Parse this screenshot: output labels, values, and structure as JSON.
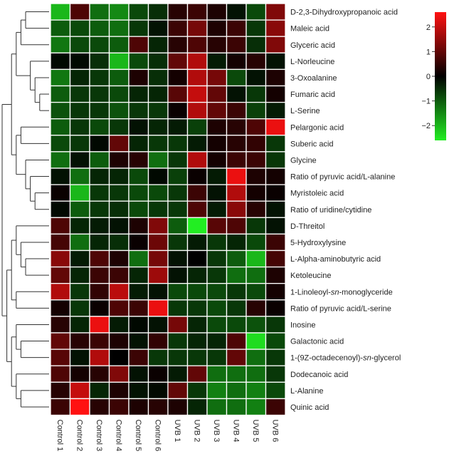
{
  "chart_data": {
    "type": "heatmap",
    "title": "",
    "xlabel": "",
    "ylabel": "",
    "columns": [
      "Control 1",
      "Control 2",
      "Control 3",
      "Control 4",
      "Control 5",
      "Control 6",
      "UVB 1",
      "UVB 2",
      "UVB 3",
      "UVB 4",
      "UVB 5",
      "UVB 6"
    ],
    "rows": [
      "D-2,3-Dihydroxypropanoic acid",
      "Maleic acid",
      "Glyceric acid",
      "L-Norleucine",
      "3-Oxoalanine",
      "Fumaric acid",
      "L-Serine",
      "Pelargonic acid",
      "Suberic acid",
      "Glycine",
      "Ratio of pyruvic acid/L-alanine",
      "Myristoleic acid",
      "Ratio of uridine/cytidine",
      "D-Threitol",
      "5-Hydroxylysine",
      "L-Alpha-aminobutyric acid",
      "Ketoleucine",
      "1-Linoleoyl-sn-monoglyceride",
      "Ratio of pyruvic acid/L-serine",
      "Inosine",
      "Galactonic acid",
      "1-(9Z-octadecenoyl)-sn-glycerol",
      "Dodecanoic acid",
      "L-Alanine",
      "Quinic acid"
    ],
    "row_label_italic_parts": {
      "17": [
        "1-Linoleoyl-",
        "sn",
        "-monoglyceride"
      ],
      "21": [
        "1-(9Z-octadecenoyl)-",
        "sn",
        "-glycerol"
      ]
    },
    "values": [
      [
        -2.0,
        0.8,
        -1.2,
        -1.5,
        -0.8,
        -0.5,
        0.4,
        0.6,
        0.3,
        -0.2,
        -0.8,
        1.3
      ],
      [
        -1.0,
        -0.8,
        -1.0,
        -1.2,
        -0.6,
        -0.2,
        0.6,
        1.2,
        0.3,
        0.6,
        -0.6,
        1.4
      ],
      [
        -1.3,
        -0.8,
        -0.8,
        -1.0,
        0.8,
        -0.4,
        0.4,
        0.8,
        0.4,
        0.6,
        -0.5,
        1.3
      ],
      [
        -0.1,
        -0.1,
        -0.5,
        -2.0,
        -0.8,
        -0.5,
        1.0,
        1.8,
        -0.3,
        0.2,
        0.4,
        -0.2
      ],
      [
        -1.3,
        -0.4,
        -0.6,
        -1.0,
        0.3,
        -0.5,
        0.2,
        1.8,
        1.2,
        -0.8,
        -0.2,
        0.3
      ],
      [
        -1.0,
        -0.6,
        -0.6,
        -0.8,
        -0.4,
        -0.4,
        0.9,
        2.0,
        1.0,
        -0.2,
        -0.6,
        0.2
      ],
      [
        -0.9,
        -0.6,
        -0.6,
        -0.9,
        -0.6,
        -0.6,
        0.1,
        1.8,
        1.0,
        0.6,
        -0.7,
        -0.3
      ],
      [
        -1.0,
        -0.6,
        -0.8,
        -0.6,
        -0.2,
        -0.4,
        -0.3,
        -0.7,
        0.3,
        0.4,
        0.8,
        2.4
      ],
      [
        -0.8,
        -0.6,
        -0.1,
        1.0,
        -0.4,
        -0.6,
        -0.6,
        -0.3,
        0.2,
        0.4,
        0.5,
        -0.6
      ],
      [
        -1.2,
        -0.2,
        -1.0,
        0.3,
        0.4,
        -1.2,
        -0.6,
        1.8,
        0.2,
        0.6,
        0.6,
        -0.6
      ],
      [
        -0.2,
        -1.2,
        -0.4,
        -0.4,
        -0.8,
        -0.1,
        -0.7,
        0.1,
        -0.3,
        2.4,
        0.3,
        0.2
      ],
      [
        0.1,
        -2.0,
        -0.6,
        -0.6,
        -0.8,
        -0.8,
        -0.6,
        0.6,
        -0.2,
        1.8,
        0.2,
        0.1
      ],
      [
        -0.1,
        -1.0,
        -0.6,
        -0.5,
        -0.8,
        -0.6,
        -0.6,
        0.8,
        -0.3,
        1.4,
        0.4,
        -0.2
      ],
      [
        0.8,
        -0.4,
        -0.3,
        -0.2,
        0.3,
        1.3,
        -1.0,
        -2.6,
        0.9,
        0.8,
        -0.6,
        -0.2
      ],
      [
        0.7,
        -1.2,
        -0.4,
        -0.5,
        0.1,
        1.1,
        -0.6,
        -0.3,
        -0.6,
        -0.4,
        -0.8,
        0.6
      ],
      [
        1.4,
        -0.3,
        0.8,
        0.3,
        -1.2,
        1.2,
        -0.2,
        0.0,
        -0.6,
        -1.0,
        -2.0,
        0.7
      ],
      [
        1.0,
        -0.4,
        0.6,
        0.6,
        -0.4,
        1.6,
        -0.2,
        -0.4,
        -0.6,
        -1.2,
        -1.2,
        0.3
      ],
      [
        1.8,
        -0.6,
        0.5,
        1.9,
        -0.3,
        -0.2,
        -0.8,
        -0.8,
        -0.8,
        -0.6,
        -0.8,
        0.2
      ],
      [
        0.2,
        -0.6,
        0.1,
        0.8,
        0.6,
        2.4,
        -0.6,
        -0.6,
        -0.8,
        -0.6,
        0.4,
        0.1
      ],
      [
        0.4,
        -0.4,
        2.4,
        -0.3,
        -0.1,
        -0.2,
        1.2,
        -0.4,
        -0.8,
        -0.8,
        -0.9,
        -0.6
      ],
      [
        1.0,
        0.4,
        0.6,
        0.3,
        -0.2,
        0.5,
        -0.6,
        -0.4,
        -0.4,
        0.8,
        -2.4,
        -0.8
      ],
      [
        0.9,
        -0.2,
        1.8,
        0.0,
        0.6,
        -0.6,
        -0.6,
        -0.6,
        -0.6,
        1.0,
        -1.2,
        -0.6
      ],
      [
        0.8,
        0.2,
        0.4,
        1.3,
        -0.2,
        0.1,
        -0.3,
        1.0,
        -1.2,
        -1.2,
        -1.2,
        -0.6
      ],
      [
        0.4,
        2.0,
        -0.4,
        0.3,
        -0.2,
        -0.1,
        1.0,
        -0.6,
        -1.4,
        -1.2,
        -1.4,
        -0.8
      ],
      [
        0.6,
        2.6,
        0.4,
        0.6,
        0.3,
        0.4,
        0.3,
        -0.4,
        -1.2,
        -1.2,
        -1.4,
        0.6
      ]
    ],
    "color_scale": {
      "min": -2.6,
      "max": 2.6,
      "low_color": "#22ee22",
      "mid_color": "#000000",
      "high_color": "#ff1111",
      "ticks": [
        2,
        1,
        0,
        -1,
        -2
      ],
      "tick_labels": [
        "2",
        "1",
        "0",
        "−1",
        "−2"
      ]
    },
    "row_dendrogram": true,
    "grid_color": "#ffffff"
  }
}
